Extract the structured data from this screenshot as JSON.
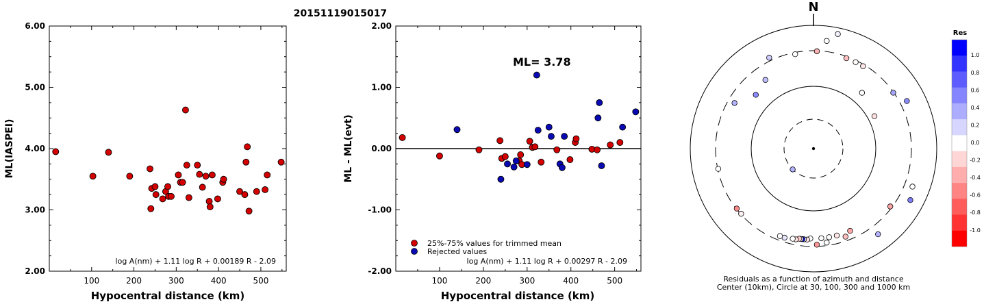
{
  "title": "20151119015017",
  "north_label": "N",
  "chart_data": [
    {
      "type": "scatter",
      "xlabel": "Hypocentral distance (km)",
      "ylabel": "ML(IASPEI)",
      "xlim": [
        0,
        560
      ],
      "ylim": [
        2.0,
        6.0
      ],
      "x_ticks": [
        "100",
        "200",
        "300",
        "400",
        "500"
      ],
      "y_ticks": [
        "2.00",
        "3.00",
        "4.00",
        "5.00",
        "6.00"
      ],
      "formula": "log A(nm) + 1.11 log R + 0.00189 R - 2.09",
      "series": [
        {
          "color": "#d40000",
          "points": [
            [
              15,
              3.95
            ],
            [
              103,
              3.55
            ],
            [
              140,
              3.94
            ],
            [
              190,
              3.55
            ],
            [
              238,
              3.67
            ],
            [
              240,
              3.02
            ],
            [
              242,
              3.35
            ],
            [
              250,
              3.38
            ],
            [
              252,
              3.25
            ],
            [
              268,
              3.18
            ],
            [
              275,
              3.3
            ],
            [
              280,
              3.38
            ],
            [
              282,
              3.22
            ],
            [
              288,
              3.22
            ],
            [
              305,
              3.57
            ],
            [
              310,
              3.45
            ],
            [
              315,
              3.45
            ],
            [
              322,
              4.63
            ],
            [
              325,
              3.73
            ],
            [
              330,
              3.2
            ],
            [
              350,
              3.73
            ],
            [
              355,
              3.58
            ],
            [
              362,
              3.37
            ],
            [
              370,
              3.55
            ],
            [
              378,
              3.14
            ],
            [
              380,
              3.05
            ],
            [
              385,
              3.57
            ],
            [
              398,
              3.18
            ],
            [
              410,
              3.45
            ],
            [
              412,
              3.5
            ],
            [
              450,
              3.3
            ],
            [
              462,
              3.25
            ],
            [
              465,
              3.78
            ],
            [
              468,
              4.03
            ],
            [
              472,
              2.98
            ],
            [
              490,
              3.3
            ],
            [
              510,
              3.33
            ],
            [
              515,
              3.57
            ],
            [
              548,
              3.78
            ]
          ]
        }
      ]
    },
    {
      "type": "scatter",
      "xlabel": "Hypocentral distance (km)",
      "ylabel": "ML - ML(evt)",
      "xlim": [
        0,
        560
      ],
      "ylim": [
        -2.0,
        2.0
      ],
      "x_ticks": [
        "100",
        "200",
        "300",
        "400",
        "500"
      ],
      "y_ticks": [
        "-2.00",
        "-1.00",
        "0.00",
        "1.00",
        "2.00"
      ],
      "annotation": "ML= 3.78",
      "formula": "log A(nm) + 1.11 log R + 0.00297 R - 2.09",
      "reference_line": 0.0,
      "legend": [
        {
          "label": "25%-75% values for trimmed mean",
          "color": "#d40000"
        },
        {
          "label": "Rejected values",
          "color": "#0a0ab4"
        }
      ],
      "series": [
        {
          "name": "25%-75% values for trimmed mean",
          "color": "#d40000",
          "points": [
            [
              15,
              0.18
            ],
            [
              100,
              -0.12
            ],
            [
              190,
              -0.02
            ],
            [
              238,
              0.13
            ],
            [
              242,
              -0.16
            ],
            [
              250,
              -0.13
            ],
            [
              282,
              -0.2
            ],
            [
              285,
              -0.1
            ],
            [
              288,
              -0.26
            ],
            [
              306,
              0.12
            ],
            [
              312,
              0.02
            ],
            [
              318,
              0.03
            ],
            [
              332,
              -0.22
            ],
            [
              368,
              -0.02
            ],
            [
              398,
              -0.18
            ],
            [
              410,
              0.1
            ],
            [
              412,
              0.16
            ],
            [
              448,
              -0.01
            ],
            [
              460,
              -0.02
            ],
            [
              490,
              0.06
            ],
            [
              512,
              0.1
            ]
          ]
        },
        {
          "name": "Rejected values",
          "color": "#0a0ab4",
          "points": [
            [
              140,
              0.31
            ],
            [
              240,
              -0.5
            ],
            [
              255,
              -0.25
            ],
            [
              270,
              -0.3
            ],
            [
              275,
              -0.2
            ],
            [
              300,
              -0.26
            ],
            [
              322,
              1.2
            ],
            [
              325,
              0.3
            ],
            [
              350,
              0.35
            ],
            [
              355,
              0.2
            ],
            [
              375,
              -0.25
            ],
            [
              380,
              -0.31
            ],
            [
              385,
              0.2
            ],
            [
              462,
              0.5
            ],
            [
              465,
              0.75
            ],
            [
              470,
              -0.28
            ],
            [
              518,
              0.35
            ],
            [
              548,
              0.6
            ]
          ]
        }
      ]
    },
    {
      "type": "scatter",
      "subtype": "polar",
      "caption": "Residuals as a function of azimuth and distance",
      "caption2": "Center (10km), Circle at 30, 100, 300 and 1000 km",
      "colorbar": {
        "title": "Res",
        "ticks": [
          "1.0",
          "0.8",
          "0.6",
          "0.4",
          "0.2",
          "0.0",
          "-0.2",
          "-0.4",
          "-0.6",
          "-0.8",
          "-1.0"
        ],
        "colors": [
          "#0000ff",
          "#3333ff",
          "#5c5cff",
          "#8585ff",
          "#adadff",
          "#d6d6ff",
          "#ffffff",
          "#ffd6d6",
          "#ffadad",
          "#ff8585",
          "#ff5c5c",
          "#ff3333",
          "#ff0000"
        ]
      },
      "points": [
        {
          "az": 225,
          "dist": 30,
          "res": 0.3
        },
        {
          "az": 7,
          "dist": 0.88,
          "res": 0.0
        },
        {
          "az": 2,
          "dist": 0.79,
          "res": -0.3
        },
        {
          "az": 12,
          "dist": 0.95,
          "res": 0.05
        },
        {
          "az": 20,
          "dist": 0.78,
          "res": -0.25
        },
        {
          "az": 26,
          "dist": 0.78,
          "res": -0.02
        },
        {
          "az": 31,
          "dist": 0.78,
          "res": -0.1
        },
        {
          "az": 41,
          "dist": 0.6,
          "res": 0.0
        },
        {
          "az": 55,
          "dist": 0.79,
          "res": 0.35
        },
        {
          "az": 63,
          "dist": 0.85,
          "res": 0.45
        },
        {
          "az": 62,
          "dist": 0.56,
          "res": -0.12
        },
        {
          "az": 111,
          "dist": 0.86,
          "res": 0.0
        },
        {
          "az": 118,
          "dist": 0.89,
          "res": 0.5
        },
        {
          "az": 127,
          "dist": 0.78,
          "res": -0.35
        },
        {
          "az": 143,
          "dist": 0.87,
          "res": 0.3
        },
        {
          "az": 156,
          "dist": 0.73,
          "res": -0.35
        },
        {
          "az": 160,
          "dist": 0.76,
          "res": -0.25
        },
        {
          "az": 165,
          "dist": 0.73,
          "res": -0.1
        },
        {
          "az": 170,
          "dist": 0.73,
          "res": 0.0
        },
        {
          "az": 172,
          "dist": 0.77,
          "res": 0.0
        },
        {
          "az": 175,
          "dist": 0.73,
          "res": 0.0
        },
        {
          "az": 178,
          "dist": 0.78,
          "res": -0.4
        },
        {
          "az": 182,
          "dist": 0.73,
          "res": 0.0
        },
        {
          "az": 184,
          "dist": 0.74,
          "res": -0.1
        },
        {
          "az": 186,
          "dist": 0.74,
          "res": 0.05
        },
        {
          "az": 187,
          "dist": 0.74,
          "res": 0.95
        },
        {
          "az": 188,
          "dist": 0.74,
          "res": 0.0
        },
        {
          "az": 189,
          "dist": 0.74,
          "res": -0.2
        },
        {
          "az": 191,
          "dist": 0.75,
          "res": -0.1
        },
        {
          "az": 193,
          "dist": 0.75,
          "res": 0.0
        },
        {
          "az": 198,
          "dist": 0.76,
          "res": 0.1
        },
        {
          "az": 201,
          "dist": 0.76,
          "res": 0.0
        },
        {
          "az": 228,
          "dist": 0.79,
          "res": -0.05
        },
        {
          "az": 232,
          "dist": 0.79,
          "res": -0.45
        },
        {
          "az": 258,
          "dist": 0.79,
          "res": 0.0
        },
        {
          "az": 300,
          "dist": 0.74,
          "res": 0.3
        },
        {
          "az": 313,
          "dist": 0.64,
          "res": 0.45
        },
        {
          "az": 325,
          "dist": 0.68,
          "res": 0.25
        },
        {
          "az": 334,
          "dist": 0.82,
          "res": 0.2
        },
        {
          "az": 349,
          "dist": 0.78,
          "res": 0.0
        }
      ]
    }
  ]
}
